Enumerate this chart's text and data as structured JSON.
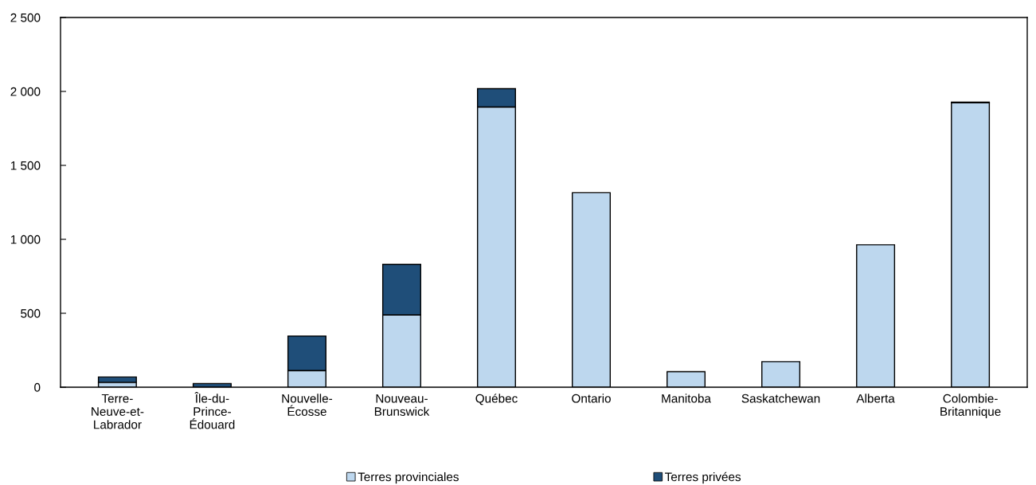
{
  "chart_data": {
    "type": "bar",
    "stacked": true,
    "categories": [
      "Terre-\nNeuve-et-\nLabrador",
      "Île-du-\nPrince-\nÉdouard",
      "Nouvelle-\nÉcosse",
      "Nouveau-\nBrunswick",
      "Québec",
      "Ontario",
      "Manitoba",
      "Saskatchewan",
      "Alberta",
      "Colombie-\nBritannique"
    ],
    "series": [
      {
        "name": "Terres provinciales",
        "color": "#bdd7ee",
        "values": [
          33,
          null,
          113,
          489,
          1895,
          1315,
          105,
          173,
          963,
          1923
        ]
      },
      {
        "name": "Terres privées",
        "color": "#1f4e79",
        "values": [
          36,
          25,
          233,
          342,
          124,
          null,
          null,
          null,
          null,
          5
        ]
      }
    ],
    "ylim": [
      0,
      2500
    ],
    "yticks": [
      0,
      500,
      {
        "value": 1000,
        "label": "1 000"
      },
      {
        "value": 1500,
        "label": "1 500"
      },
      {
        "value": 2000,
        "label": "2 000"
      },
      {
        "value": 2500,
        "label": "2 500"
      }
    ],
    "grid": false,
    "legend": "bottom"
  }
}
